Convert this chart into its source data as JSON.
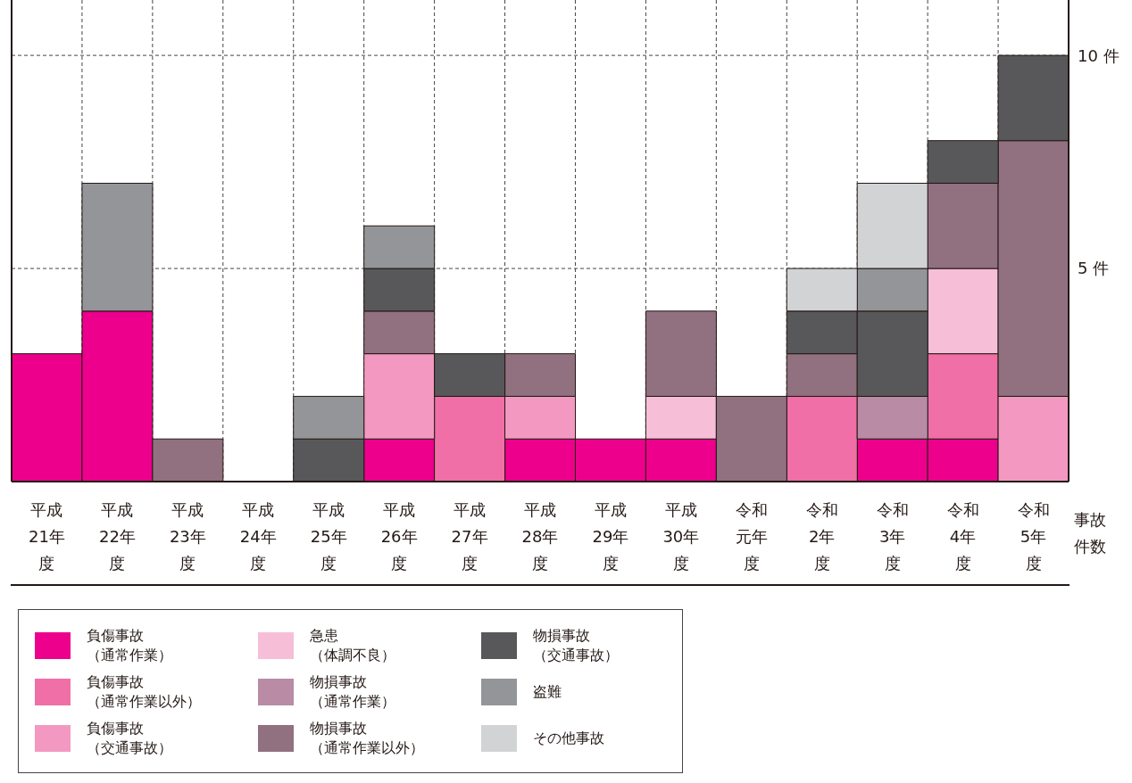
{
  "chart_data": {
    "type": "bar",
    "stacked": true,
    "annotations": [
      "事故件数"
    ],
    "categories": [
      "平成21年度",
      "平成22年度",
      "平成23年度",
      "平成24年度",
      "平成25年度",
      "平成26年度",
      "平成27年度",
      "平成28年度",
      "平成29年度",
      "平成30年度",
      "令和元年度",
      "令和2年度",
      "令和3年度",
      "令和4年度",
      "令和5年度"
    ],
    "series": [
      {
        "name": "負傷事故（通常作業）",
        "color": "#ec008c",
        "values": [
          3,
          4,
          0,
          0,
          0,
          1,
          0,
          1,
          1,
          1,
          0,
          0,
          1,
          1,
          0
        ]
      },
      {
        "name": "負傷事故（通常作業以外）",
        "color": "#f06fa6",
        "values": [
          0,
          0,
          0,
          0,
          0,
          0,
          2,
          0,
          0,
          0,
          0,
          2,
          0,
          2,
          0
        ]
      },
      {
        "name": "負傷事故（交通事故）",
        "color": "#f399c1",
        "values": [
          0,
          0,
          0,
          0,
          0,
          2,
          0,
          1,
          0,
          0,
          0,
          0,
          0,
          0,
          2
        ]
      },
      {
        "name": "急患（体調不良）",
        "color": "#f6bfd7",
        "values": [
          0,
          0,
          0,
          0,
          0,
          0,
          0,
          0,
          0,
          1,
          0,
          0,
          0,
          2,
          0
        ]
      },
      {
        "name": "物損事故（通常作業）",
        "color": "#b98ba5",
        "values": [
          0,
          0,
          0,
          0,
          0,
          0,
          0,
          0,
          0,
          0,
          0,
          0,
          1,
          0,
          0
        ]
      },
      {
        "name": "物損事故（通常作業以外）",
        "color": "#91707f",
        "values": [
          0,
          0,
          1,
          0,
          0,
          1,
          0,
          1,
          0,
          2,
          2,
          1,
          0,
          2,
          6
        ]
      },
      {
        "name": "物損事故（交通事故）",
        "color": "#58585a",
        "values": [
          0,
          0,
          0,
          0,
          1,
          1,
          1,
          0,
          0,
          0,
          0,
          1,
          2,
          1,
          2
        ]
      },
      {
        "name": "盗難",
        "color": "#949598",
        "values": [
          0,
          3,
          0,
          0,
          1,
          1,
          0,
          0,
          0,
          0,
          0,
          0,
          1,
          0,
          0
        ]
      },
      {
        "name": "その他事故",
        "color": "#d2d3d5",
        "values": [
          0,
          0,
          0,
          0,
          0,
          0,
          0,
          0,
          0,
          0,
          0,
          1,
          2,
          0,
          0
        ]
      }
    ],
    "ylim": [
      0,
      11.3
    ],
    "yticks": [
      {
        "value": 5,
        "label": "5 件"
      },
      {
        "value": 10,
        "label": "10 件"
      }
    ],
    "grid": true,
    "legend": "bottom left"
  }
}
